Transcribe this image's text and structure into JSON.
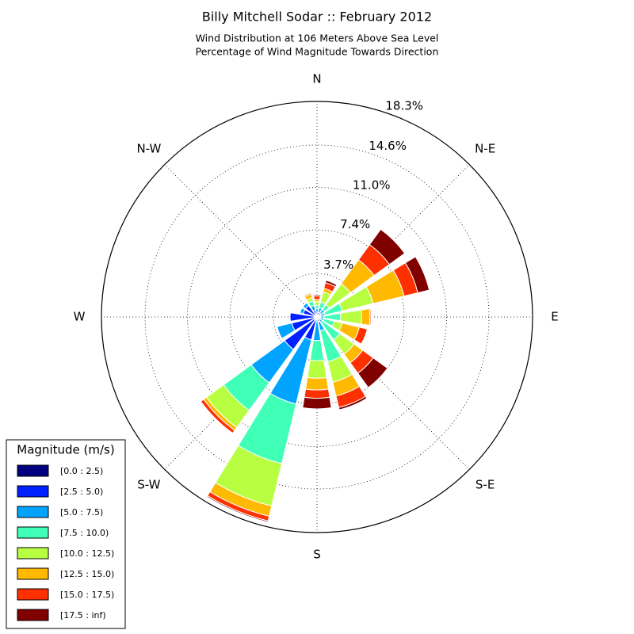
{
  "chart_data": {
    "type": "windrose",
    "title": "Billy Mitchell Sodar :: February 2012",
    "subtitle": [
      "Wind Distribution at 106 Meters Above Sea Level",
      "Percentage of Wind Magnitude Towards Direction"
    ],
    "categories": [
      "N",
      null,
      "N-E",
      null,
      "E",
      null,
      "S-E",
      null,
      "S",
      null,
      "S-W",
      null,
      "W",
      null,
      "N-W",
      null
    ],
    "rlim": [
      0,
      18.3
    ],
    "rticks": [
      {
        "value": 3.7,
        "label": "3.7%"
      },
      {
        "value": 7.4,
        "label": "7.4%"
      },
      {
        "value": 11.0,
        "label": "11.0%"
      },
      {
        "value": 14.6,
        "label": "14.6%"
      },
      {
        "value": 18.3,
        "label": "18.3%"
      }
    ],
    "grid": true,
    "legend_title": "Magnitude (m/s)",
    "legend_position": "lower left",
    "series": [
      {
        "name": "[0.0 : 2.5)",
        "color": "#000080",
        "values": [
          0.1,
          0.1,
          0.1,
          0.1,
          0.1,
          0.1,
          0.1,
          0.1,
          0.1,
          0.3,
          0.3,
          0.2,
          0.2,
          0.2,
          0.2,
          0.1
        ]
      },
      {
        "name": "[2.5 : 5.0)",
        "color": "#0020ff",
        "values": [
          0.3,
          0.3,
          0.3,
          0.2,
          0.2,
          0.2,
          0.2,
          0.3,
          0.3,
          1.7,
          3.1,
          2.0,
          2.1,
          1.0,
          1.0,
          0.5
        ]
      },
      {
        "name": "[5.0 : 7.5)",
        "color": "#00a4ff",
        "values": [
          0.3,
          0.4,
          0.4,
          0.4,
          0.3,
          0.3,
          0.3,
          0.8,
          1.6,
          5.6,
          3.5,
          1.3,
          0,
          0.3,
          0.3,
          0.4
        ]
      },
      {
        "name": "[7.5 : 10.0)",
        "color": "#40ffb7",
        "values": [
          0.3,
          0.5,
          0.5,
          1.5,
          1.4,
          0.9,
          1.8,
          2.7,
          1.7,
          5.2,
          2.9,
          0,
          0,
          0,
          0,
          0.4
        ]
      },
      {
        "name": "[10.0 : 12.5)",
        "color": "#b7ff40",
        "values": [
          0.3,
          0.9,
          2.2,
          2.7,
          1.8,
          0.7,
          1.5,
          1.8,
          1.5,
          3.7,
          1.8,
          0,
          0,
          0,
          0,
          0.3
        ]
      },
      {
        "name": "[12.5 : 15.0)",
        "color": "#ffb900",
        "values": [
          0.2,
          0.3,
          2.5,
          2.7,
          0.7,
          1.5,
          0.9,
          1.2,
          1.0,
          0.9,
          0.3,
          0,
          0,
          0,
          0,
          0.3
        ]
      },
      {
        "name": "[15.0 : 17.5)",
        "color": "#ff3000",
        "values": [
          0.3,
          0.5,
          1.6,
          1.2,
          0.1,
          0.7,
          1.1,
          1.0,
          0.7,
          0.4,
          0.3,
          0,
          0,
          0,
          0,
          0.1
        ]
      },
      {
        "name": "[17.5 : inf)",
        "color": "#800000",
        "values": [
          0.1,
          0.2,
          1.6,
          1.0,
          0,
          0,
          1.5,
          0.2,
          0.9,
          0.1,
          0,
          0,
          0,
          0,
          0,
          0
        ]
      }
    ]
  }
}
